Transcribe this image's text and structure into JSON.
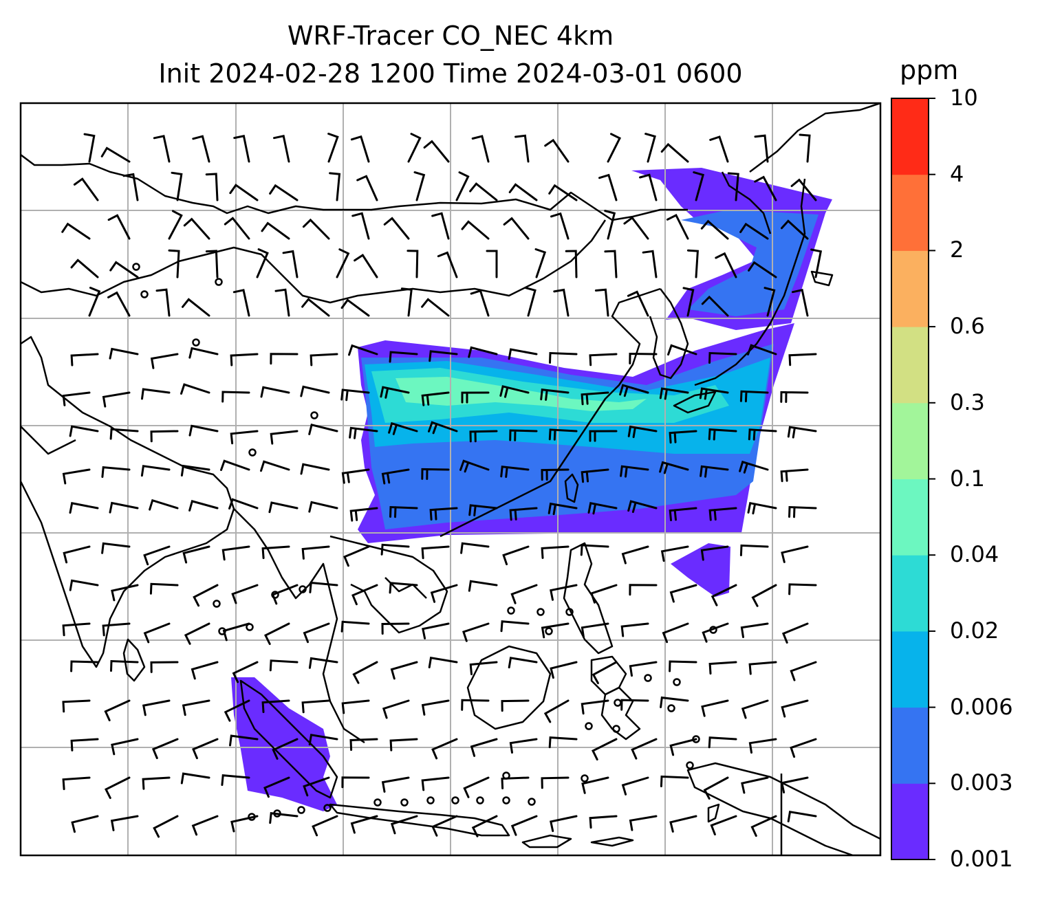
{
  "title": {
    "line1": "WRF-Tracer CO_NEC 4km",
    "line2": "Init 2024-02-28 1200 Time 2024-03-01 0600"
  },
  "colorbar": {
    "unit": "ppm",
    "levels": [
      "0.001",
      "0.003",
      "0.006",
      "0.02",
      "0.04",
      "0.1",
      "0.3",
      "0.6",
      "2",
      "4",
      "10"
    ],
    "colors": [
      "#6a2cff",
      "#3574f2",
      "#07b3eb",
      "#2ddbd5",
      "#6cf7c0",
      "#a2f59a",
      "#d2e083",
      "#fbb05f",
      "#ff7038",
      "#ff2b17"
    ]
  },
  "map": {
    "gridlines": "on",
    "land_outline": "#000000",
    "overlay": "wind barbs"
  }
}
